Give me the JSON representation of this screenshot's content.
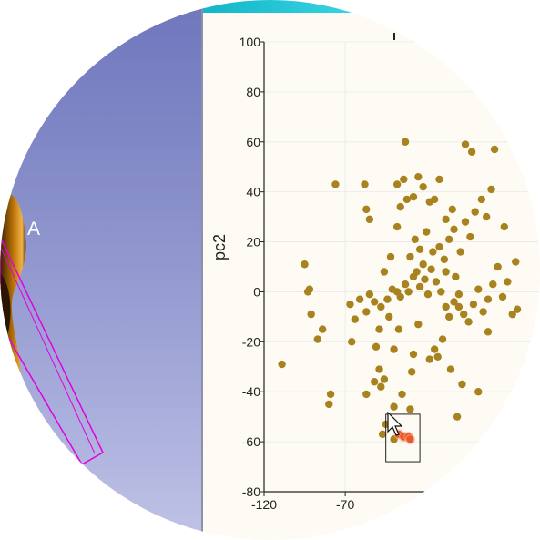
{
  "scene": {
    "label": "A",
    "colors": {
      "background_top": "#6f76bd",
      "background_bottom": "#c0c3e6",
      "selection_outline": "#e100e1",
      "surface": "#c27a0a"
    }
  },
  "plot": {
    "colors": {
      "background": "#fdfbf3",
      "point": "#a8821e",
      "selected_point": "#e85a2a",
      "grid": "#ececec",
      "top_strip": "#2fd0df"
    },
    "y_axis_title": "pc2",
    "cursor_icon": "arrow-cursor-icon"
  },
  "chart_data": {
    "type": "scatter",
    "xlabel": "",
    "ylabel": "pc2",
    "xlim": [
      -120,
      50
    ],
    "ylim": [
      -80,
      100
    ],
    "x_ticks": [
      -120,
      -70
    ],
    "y_ticks": [
      100,
      80,
      60,
      40,
      20,
      0,
      -20,
      -40,
      -60,
      -80
    ],
    "x_tick_labels": [
      "-120",
      "-70"
    ],
    "y_tick_labels": [
      "100",
      "80",
      "60",
      "40",
      "20",
      "0",
      "-20",
      "-40",
      "-60",
      "-80"
    ],
    "grid": true,
    "selection_box": {
      "x": [
        -45,
        -24
      ],
      "y": [
        -68,
        -49
      ]
    },
    "series": [
      {
        "values": [
          {
            "x": -76,
            "y": 43
          },
          {
            "x": -66,
            "y": -20
          },
          {
            "x": -57,
            "y": -41
          },
          {
            "x": -49,
            "y": -31
          },
          {
            "x": -48,
            "y": -38
          },
          {
            "x": -47,
            "y": -57
          },
          {
            "x": -45,
            "y": -53
          },
          {
            "x": -40,
            "y": -46
          },
          {
            "x": -40,
            "y": -59
          },
          {
            "x": -52,
            "y": -36
          },
          {
            "x": -29,
            "y": -32
          },
          {
            "x": -18,
            "y": -27
          },
          {
            "x": -13,
            "y": -26
          },
          {
            "x": -38,
            "y": 26
          },
          {
            "x": -36,
            "y": 34
          },
          {
            "x": -40,
            "y": -23
          },
          {
            "x": -46,
            "y": -35
          },
          {
            "x": -51,
            "y": -22
          },
          {
            "x": -64,
            "y": -11
          },
          {
            "x": -67,
            "y": -5
          },
          {
            "x": -61,
            "y": -3
          },
          {
            "x": -57,
            "y": -8
          },
          {
            "x": -55,
            "y": -1
          },
          {
            "x": -52,
            "y": -4
          },
          {
            "x": -48,
            "y": -6
          },
          {
            "x": -44,
            "y": -3
          },
          {
            "x": -41,
            "y": 1
          },
          {
            "x": -38,
            "y": 0
          },
          {
            "x": -36,
            "y": -2
          },
          {
            "x": -33,
            "y": 3
          },
          {
            "x": -31,
            "y": 0
          },
          {
            "x": -28,
            "y": 6
          },
          {
            "x": -26,
            "y": 8
          },
          {
            "x": -24,
            "y": 2
          },
          {
            "x": -21,
            "y": 5
          },
          {
            "x": -19,
            "y": -1
          },
          {
            "x": -17,
            "y": 9
          },
          {
            "x": -14,
            "y": 4
          },
          {
            "x": -11,
            "y": 0
          },
          {
            "x": -8,
            "y": -6
          },
          {
            "x": -6,
            "y": -10
          },
          {
            "x": -3,
            "y": -4
          },
          {
            "x": 0,
            "y": -1
          },
          {
            "x": 3,
            "y": -9
          },
          {
            "x": 6,
            "y": -12
          },
          {
            "x": 9,
            "y": -5
          },
          {
            "x": 12,
            "y": 1
          },
          {
            "x": 15,
            "y": -8
          },
          {
            "x": 18,
            "y": -3
          },
          {
            "x": 21,
            "y": 3
          },
          {
            "x": 24,
            "y": 10
          },
          {
            "x": 27,
            "y": -2
          },
          {
            "x": 30,
            "y": 4
          },
          {
            "x": 33,
            "y": -9
          },
          {
            "x": 36,
            "y": -7
          },
          {
            "x": -30,
            "y": 14
          },
          {
            "x": -27,
            "y": 21
          },
          {
            "x": -24,
            "y": 17
          },
          {
            "x": -22,
            "y": 11
          },
          {
            "x": -20,
            "y": 24
          },
          {
            "x": -16,
            "y": 16
          },
          {
            "x": -12,
            "y": 18
          },
          {
            "x": -9,
            "y": 13
          },
          {
            "x": -6,
            "y": 21
          },
          {
            "x": -3,
            "y": 25
          },
          {
            "x": 1,
            "y": 16
          },
          {
            "x": 4,
            "y": 28
          },
          {
            "x": 7,
            "y": 22
          },
          {
            "x": 10,
            "y": 32
          },
          {
            "x": 14,
            "y": 37
          },
          {
            "x": 17,
            "y": 30
          },
          {
            "x": 20,
            "y": 41
          },
          {
            "x": -28,
            "y": 38
          },
          {
            "x": -22,
            "y": 42
          },
          {
            "x": -18,
            "y": 36
          },
          {
            "x": -12,
            "y": 45
          },
          {
            "x": -8,
            "y": 29
          },
          {
            "x": -4,
            "y": 33
          },
          {
            "x": -33,
            "y": 60
          },
          {
            "x": 4,
            "y": 59
          },
          {
            "x": 8,
            "y": 56
          },
          {
            "x": 22,
            "y": 57
          },
          {
            "x": 28,
            "y": 26
          },
          {
            "x": 35,
            "y": 12
          },
          {
            "x": -28,
            "y": -25
          },
          {
            "x": -35,
            "y": -41
          },
          {
            "x": -37,
            "y": -15
          },
          {
            "x": -25,
            "y": -13
          },
          {
            "x": -15,
            "y": -23
          },
          {
            "x": -10,
            "y": -19
          },
          {
            "x": -43,
            "y": -10
          },
          {
            "x": -46,
            "y": 8
          },
          {
            "x": -49,
            "y": -15
          },
          {
            "x": -42,
            "y": 14
          },
          {
            "x": -30,
            "y": -47
          },
          {
            "x": -95,
            "y": 11
          },
          {
            "x": -93,
            "y": 0
          },
          {
            "x": -91,
            "y": -9
          },
          {
            "x": -87,
            "y": -19
          },
          {
            "x": -84,
            "y": -15
          },
          {
            "x": -79,
            "y": -41
          },
          {
            "x": -80,
            "y": -45
          },
          {
            "x": -109,
            "y": -29
          },
          {
            "x": -92,
            "y": 1
          },
          {
            "x": -58,
            "y": 43
          },
          {
            "x": -57,
            "y": 33
          },
          {
            "x": -55,
            "y": 29
          },
          {
            "x": -38,
            "y": 43
          },
          {
            "x": -34,
            "y": 45
          },
          {
            "x": -32,
            "y": 37
          },
          {
            "x": -25,
            "y": 46
          },
          {
            "x": -15,
            "y": 37
          },
          {
            "x": -8,
            "y": 8
          },
          {
            "x": 0,
            "y": -6
          },
          {
            "x": 12,
            "y": -40
          },
          {
            "x": -5,
            "y": -31
          },
          {
            "x": -1,
            "y": -50
          },
          {
            "x": 2,
            "y": -37
          },
          {
            "x": -2,
            "y": 6
          },
          {
            "x": 18,
            "y": -16
          }
        ]
      },
      {
        "selected": true,
        "values": [
          {
            "x": -37,
            "y": -57
          },
          {
            "x": -34,
            "y": -58
          },
          {
            "x": -31,
            "y": -58
          },
          {
            "x": -30,
            "y": -59
          }
        ]
      }
    ]
  }
}
